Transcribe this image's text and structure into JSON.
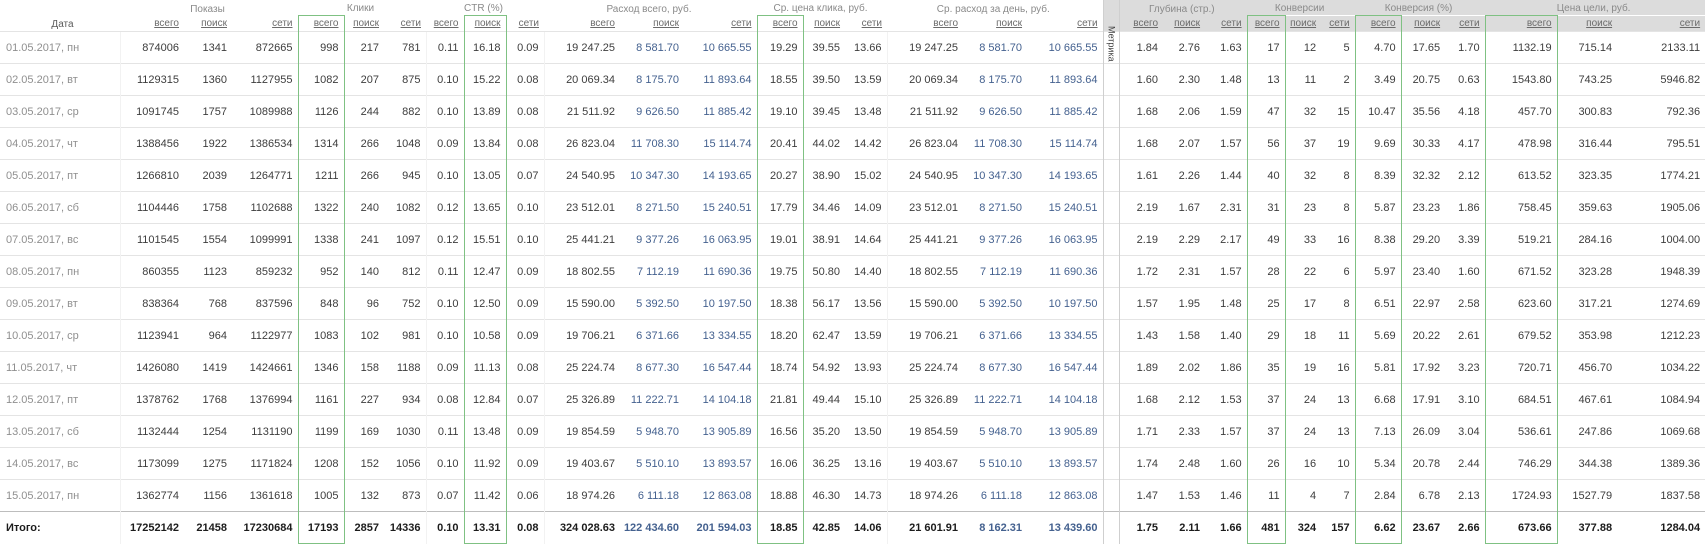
{
  "table": {
    "date_header": "Дата",
    "sub_headers": [
      "всего",
      "поиск",
      "сети"
    ],
    "groups": [
      {
        "id": "impressions",
        "label": "Показы"
      },
      {
        "id": "clicks",
        "label": "Клики"
      },
      {
        "id": "ctr",
        "label": "CTR (%)"
      },
      {
        "id": "cost",
        "label": "Расход всего, руб."
      },
      {
        "id": "cpc",
        "label": "Ср. цена клика, руб."
      },
      {
        "id": "cost_per_day",
        "label": "Ср. расход за день, руб."
      },
      {
        "id": "depth",
        "label": "Глубина (стр.)",
        "section": "metrica"
      },
      {
        "id": "conversions",
        "label": "Конверсии",
        "section": "metrica"
      },
      {
        "id": "conversion_rate",
        "label": "Конверсия (%)",
        "section": "metrica"
      },
      {
        "id": "goal_cost",
        "label": "Цена цели, руб.",
        "section": "metrica"
      }
    ],
    "divider_label": "Метрика",
    "highlighted": [
      [
        1,
        0
      ],
      [
        2,
        1
      ],
      [
        4,
        0
      ],
      [
        7,
        0
      ],
      [
        8,
        0
      ],
      [
        9,
        0
      ]
    ],
    "totals_label": "Итого:",
    "rows": [
      {
        "date": "01.05.2017, пн",
        "cells": [
          [
            "874006",
            "1341",
            "872665"
          ],
          [
            "998",
            "217",
            "781"
          ],
          [
            "0.11",
            "16.18",
            "0.09"
          ],
          [
            "19 247.25",
            "8 581.70",
            "10 665.55"
          ],
          [
            "19.29",
            "39.55",
            "13.66"
          ],
          [
            "19 247.25",
            "8 581.70",
            "10 665.55"
          ],
          [
            "1.84",
            "2.76",
            "1.63"
          ],
          [
            "17",
            "12",
            "5"
          ],
          [
            "4.70",
            "17.65",
            "1.70"
          ],
          [
            "1132.19",
            "715.14",
            "2133.11"
          ]
        ]
      },
      {
        "date": "02.05.2017, вт",
        "cells": [
          [
            "1129315",
            "1360",
            "1127955"
          ],
          [
            "1082",
            "207",
            "875"
          ],
          [
            "0.10",
            "15.22",
            "0.08"
          ],
          [
            "20 069.34",
            "8 175.70",
            "11 893.64"
          ],
          [
            "18.55",
            "39.50",
            "13.59"
          ],
          [
            "20 069.34",
            "8 175.70",
            "11 893.64"
          ],
          [
            "1.60",
            "2.30",
            "1.48"
          ],
          [
            "13",
            "11",
            "2"
          ],
          [
            "3.49",
            "20.75",
            "0.63"
          ],
          [
            "1543.80",
            "743.25",
            "5946.82"
          ]
        ]
      },
      {
        "date": "03.05.2017, ср",
        "cells": [
          [
            "1091745",
            "1757",
            "1089988"
          ],
          [
            "1126",
            "244",
            "882"
          ],
          [
            "0.10",
            "13.89",
            "0.08"
          ],
          [
            "21 511.92",
            "9 626.50",
            "11 885.42"
          ],
          [
            "19.10",
            "39.45",
            "13.48"
          ],
          [
            "21 511.92",
            "9 626.50",
            "11 885.42"
          ],
          [
            "1.68",
            "2.06",
            "1.59"
          ],
          [
            "47",
            "32",
            "15"
          ],
          [
            "10.47",
            "35.56",
            "4.18"
          ],
          [
            "457.70",
            "300.83",
            "792.36"
          ]
        ]
      },
      {
        "date": "04.05.2017, чт",
        "cells": [
          [
            "1388456",
            "1922",
            "1386534"
          ],
          [
            "1314",
            "266",
            "1048"
          ],
          [
            "0.09",
            "13.84",
            "0.08"
          ],
          [
            "26 823.04",
            "11 708.30",
            "15 114.74"
          ],
          [
            "20.41",
            "44.02",
            "14.42"
          ],
          [
            "26 823.04",
            "11 708.30",
            "15 114.74"
          ],
          [
            "1.68",
            "2.07",
            "1.57"
          ],
          [
            "56",
            "37",
            "19"
          ],
          [
            "9.69",
            "30.33",
            "4.17"
          ],
          [
            "478.98",
            "316.44",
            "795.51"
          ]
        ]
      },
      {
        "date": "05.05.2017, пт",
        "cells": [
          [
            "1266810",
            "2039",
            "1264771"
          ],
          [
            "1211",
            "266",
            "945"
          ],
          [
            "0.10",
            "13.05",
            "0.07"
          ],
          [
            "24 540.95",
            "10 347.30",
            "14 193.65"
          ],
          [
            "20.27",
            "38.90",
            "15.02"
          ],
          [
            "24 540.95",
            "10 347.30",
            "14 193.65"
          ],
          [
            "1.61",
            "2.26",
            "1.44"
          ],
          [
            "40",
            "32",
            "8"
          ],
          [
            "8.39",
            "32.32",
            "2.12"
          ],
          [
            "613.52",
            "323.35",
            "1774.21"
          ]
        ]
      },
      {
        "date": "06.05.2017, сб",
        "cells": [
          [
            "1104446",
            "1758",
            "1102688"
          ],
          [
            "1322",
            "240",
            "1082"
          ],
          [
            "0.12",
            "13.65",
            "0.10"
          ],
          [
            "23 512.01",
            "8 271.50",
            "15 240.51"
          ],
          [
            "17.79",
            "34.46",
            "14.09"
          ],
          [
            "23 512.01",
            "8 271.50",
            "15 240.51"
          ],
          [
            "2.19",
            "1.67",
            "2.31"
          ],
          [
            "31",
            "23",
            "8"
          ],
          [
            "5.87",
            "23.23",
            "1.86"
          ],
          [
            "758.45",
            "359.63",
            "1905.06"
          ]
        ]
      },
      {
        "date": "07.05.2017, вс",
        "cells": [
          [
            "1101545",
            "1554",
            "1099991"
          ],
          [
            "1338",
            "241",
            "1097"
          ],
          [
            "0.12",
            "15.51",
            "0.10"
          ],
          [
            "25 441.21",
            "9 377.26",
            "16 063.95"
          ],
          [
            "19.01",
            "38.91",
            "14.64"
          ],
          [
            "25 441.21",
            "9 377.26",
            "16 063.95"
          ],
          [
            "2.19",
            "2.29",
            "2.17"
          ],
          [
            "49",
            "33",
            "16"
          ],
          [
            "8.38",
            "29.20",
            "3.39"
          ],
          [
            "519.21",
            "284.16",
            "1004.00"
          ]
        ]
      },
      {
        "date": "08.05.2017, пн",
        "cells": [
          [
            "860355",
            "1123",
            "859232"
          ],
          [
            "952",
            "140",
            "812"
          ],
          [
            "0.11",
            "12.47",
            "0.09"
          ],
          [
            "18 802.55",
            "7 112.19",
            "11 690.36"
          ],
          [
            "19.75",
            "50.80",
            "14.40"
          ],
          [
            "18 802.55",
            "7 112.19",
            "11 690.36"
          ],
          [
            "1.72",
            "2.31",
            "1.57"
          ],
          [
            "28",
            "22",
            "6"
          ],
          [
            "5.97",
            "23.40",
            "1.60"
          ],
          [
            "671.52",
            "323.28",
            "1948.39"
          ]
        ]
      },
      {
        "date": "09.05.2017, вт",
        "cells": [
          [
            "838364",
            "768",
            "837596"
          ],
          [
            "848",
            "96",
            "752"
          ],
          [
            "0.10",
            "12.50",
            "0.09"
          ],
          [
            "15 590.00",
            "5 392.50",
            "10 197.50"
          ],
          [
            "18.38",
            "56.17",
            "13.56"
          ],
          [
            "15 590.00",
            "5 392.50",
            "10 197.50"
          ],
          [
            "1.57",
            "1.95",
            "1.48"
          ],
          [
            "25",
            "17",
            "8"
          ],
          [
            "6.51",
            "22.97",
            "2.58"
          ],
          [
            "623.60",
            "317.21",
            "1274.69"
          ]
        ]
      },
      {
        "date": "10.05.2017, ср",
        "cells": [
          [
            "1123941",
            "964",
            "1122977"
          ],
          [
            "1083",
            "102",
            "981"
          ],
          [
            "0.10",
            "10.58",
            "0.09"
          ],
          [
            "19 706.21",
            "6 371.66",
            "13 334.55"
          ],
          [
            "18.20",
            "62.47",
            "13.59"
          ],
          [
            "19 706.21",
            "6 371.66",
            "13 334.55"
          ],
          [
            "1.43",
            "1.58",
            "1.40"
          ],
          [
            "29",
            "18",
            "11"
          ],
          [
            "5.69",
            "20.22",
            "2.61"
          ],
          [
            "679.52",
            "353.98",
            "1212.23"
          ]
        ]
      },
      {
        "date": "11.05.2017, чт",
        "cells": [
          [
            "1426080",
            "1419",
            "1424661"
          ],
          [
            "1346",
            "158",
            "1188"
          ],
          [
            "0.09",
            "11.13",
            "0.08"
          ],
          [
            "25 224.74",
            "8 677.30",
            "16 547.44"
          ],
          [
            "18.74",
            "54.92",
            "13.93"
          ],
          [
            "25 224.74",
            "8 677.30",
            "16 547.44"
          ],
          [
            "1.89",
            "2.02",
            "1.86"
          ],
          [
            "35",
            "19",
            "16"
          ],
          [
            "5.81",
            "17.92",
            "3.23"
          ],
          [
            "720.71",
            "456.70",
            "1034.22"
          ]
        ]
      },
      {
        "date": "12.05.2017, пт",
        "cells": [
          [
            "1378762",
            "1768",
            "1376994"
          ],
          [
            "1161",
            "227",
            "934"
          ],
          [
            "0.08",
            "12.84",
            "0.07"
          ],
          [
            "25 326.89",
            "11 222.71",
            "14 104.18"
          ],
          [
            "21.81",
            "49.44",
            "15.10"
          ],
          [
            "25 326.89",
            "11 222.71",
            "14 104.18"
          ],
          [
            "1.68",
            "2.12",
            "1.53"
          ],
          [
            "37",
            "24",
            "13"
          ],
          [
            "6.68",
            "17.91",
            "3.10"
          ],
          [
            "684.51",
            "467.61",
            "1084.94"
          ]
        ]
      },
      {
        "date": "13.05.2017, сб",
        "cells": [
          [
            "1132444",
            "1254",
            "1131190"
          ],
          [
            "1199",
            "169",
            "1030"
          ],
          [
            "0.11",
            "13.48",
            "0.09"
          ],
          [
            "19 854.59",
            "5 948.70",
            "13 905.89"
          ],
          [
            "16.56",
            "35.20",
            "13.50"
          ],
          [
            "19 854.59",
            "5 948.70",
            "13 905.89"
          ],
          [
            "1.71",
            "2.33",
            "1.57"
          ],
          [
            "37",
            "24",
            "13"
          ],
          [
            "7.13",
            "26.09",
            "3.04"
          ],
          [
            "536.61",
            "247.86",
            "1069.68"
          ]
        ]
      },
      {
        "date": "14.05.2017, вс",
        "cells": [
          [
            "1173099",
            "1275",
            "1171824"
          ],
          [
            "1208",
            "152",
            "1056"
          ],
          [
            "0.10",
            "11.92",
            "0.09"
          ],
          [
            "19 403.67",
            "5 510.10",
            "13 893.57"
          ],
          [
            "16.06",
            "36.25",
            "13.16"
          ],
          [
            "19 403.67",
            "5 510.10",
            "13 893.57"
          ],
          [
            "1.74",
            "2.48",
            "1.60"
          ],
          [
            "26",
            "16",
            "10"
          ],
          [
            "5.34",
            "20.78",
            "2.44"
          ],
          [
            "746.29",
            "344.38",
            "1389.36"
          ]
        ]
      },
      {
        "date": "15.05.2017, пн",
        "cells": [
          [
            "1362774",
            "1156",
            "1361618"
          ],
          [
            "1005",
            "132",
            "873"
          ],
          [
            "0.07",
            "11.42",
            "0.06"
          ],
          [
            "18 974.26",
            "6 111.18",
            "12 863.08"
          ],
          [
            "18.88",
            "46.30",
            "14.73"
          ],
          [
            "18 974.26",
            "6 111.18",
            "12 863.08"
          ],
          [
            "1.47",
            "1.53",
            "1.46"
          ],
          [
            "11",
            "4",
            "7"
          ],
          [
            "2.84",
            "6.78",
            "2.13"
          ],
          [
            "1724.93",
            "1527.79",
            "1837.58"
          ]
        ]
      }
    ],
    "totals": [
      [
        "17252142",
        "21458",
        "17230684"
      ],
      [
        "17193",
        "2857",
        "14336"
      ],
      [
        "0.10",
        "13.31",
        "0.08"
      ],
      [
        "324 028.63",
        "122 434.60",
        "201 594.03"
      ],
      [
        "18.85",
        "42.85",
        "14.06"
      ],
      [
        "21 601.91",
        "8 162.31",
        "13 439.60"
      ],
      [
        "1.75",
        "2.11",
        "1.66"
      ],
      [
        "481",
        "324",
        "157"
      ],
      [
        "6.62",
        "23.67",
        "2.66"
      ],
      [
        "673.66",
        "377.88",
        "1284.04"
      ]
    ],
    "colors": {
      "highlight_border": "#7fc183",
      "metrica_header_bg": "#dcdcdc",
      "cost_link_text": "#44618f"
    }
  }
}
